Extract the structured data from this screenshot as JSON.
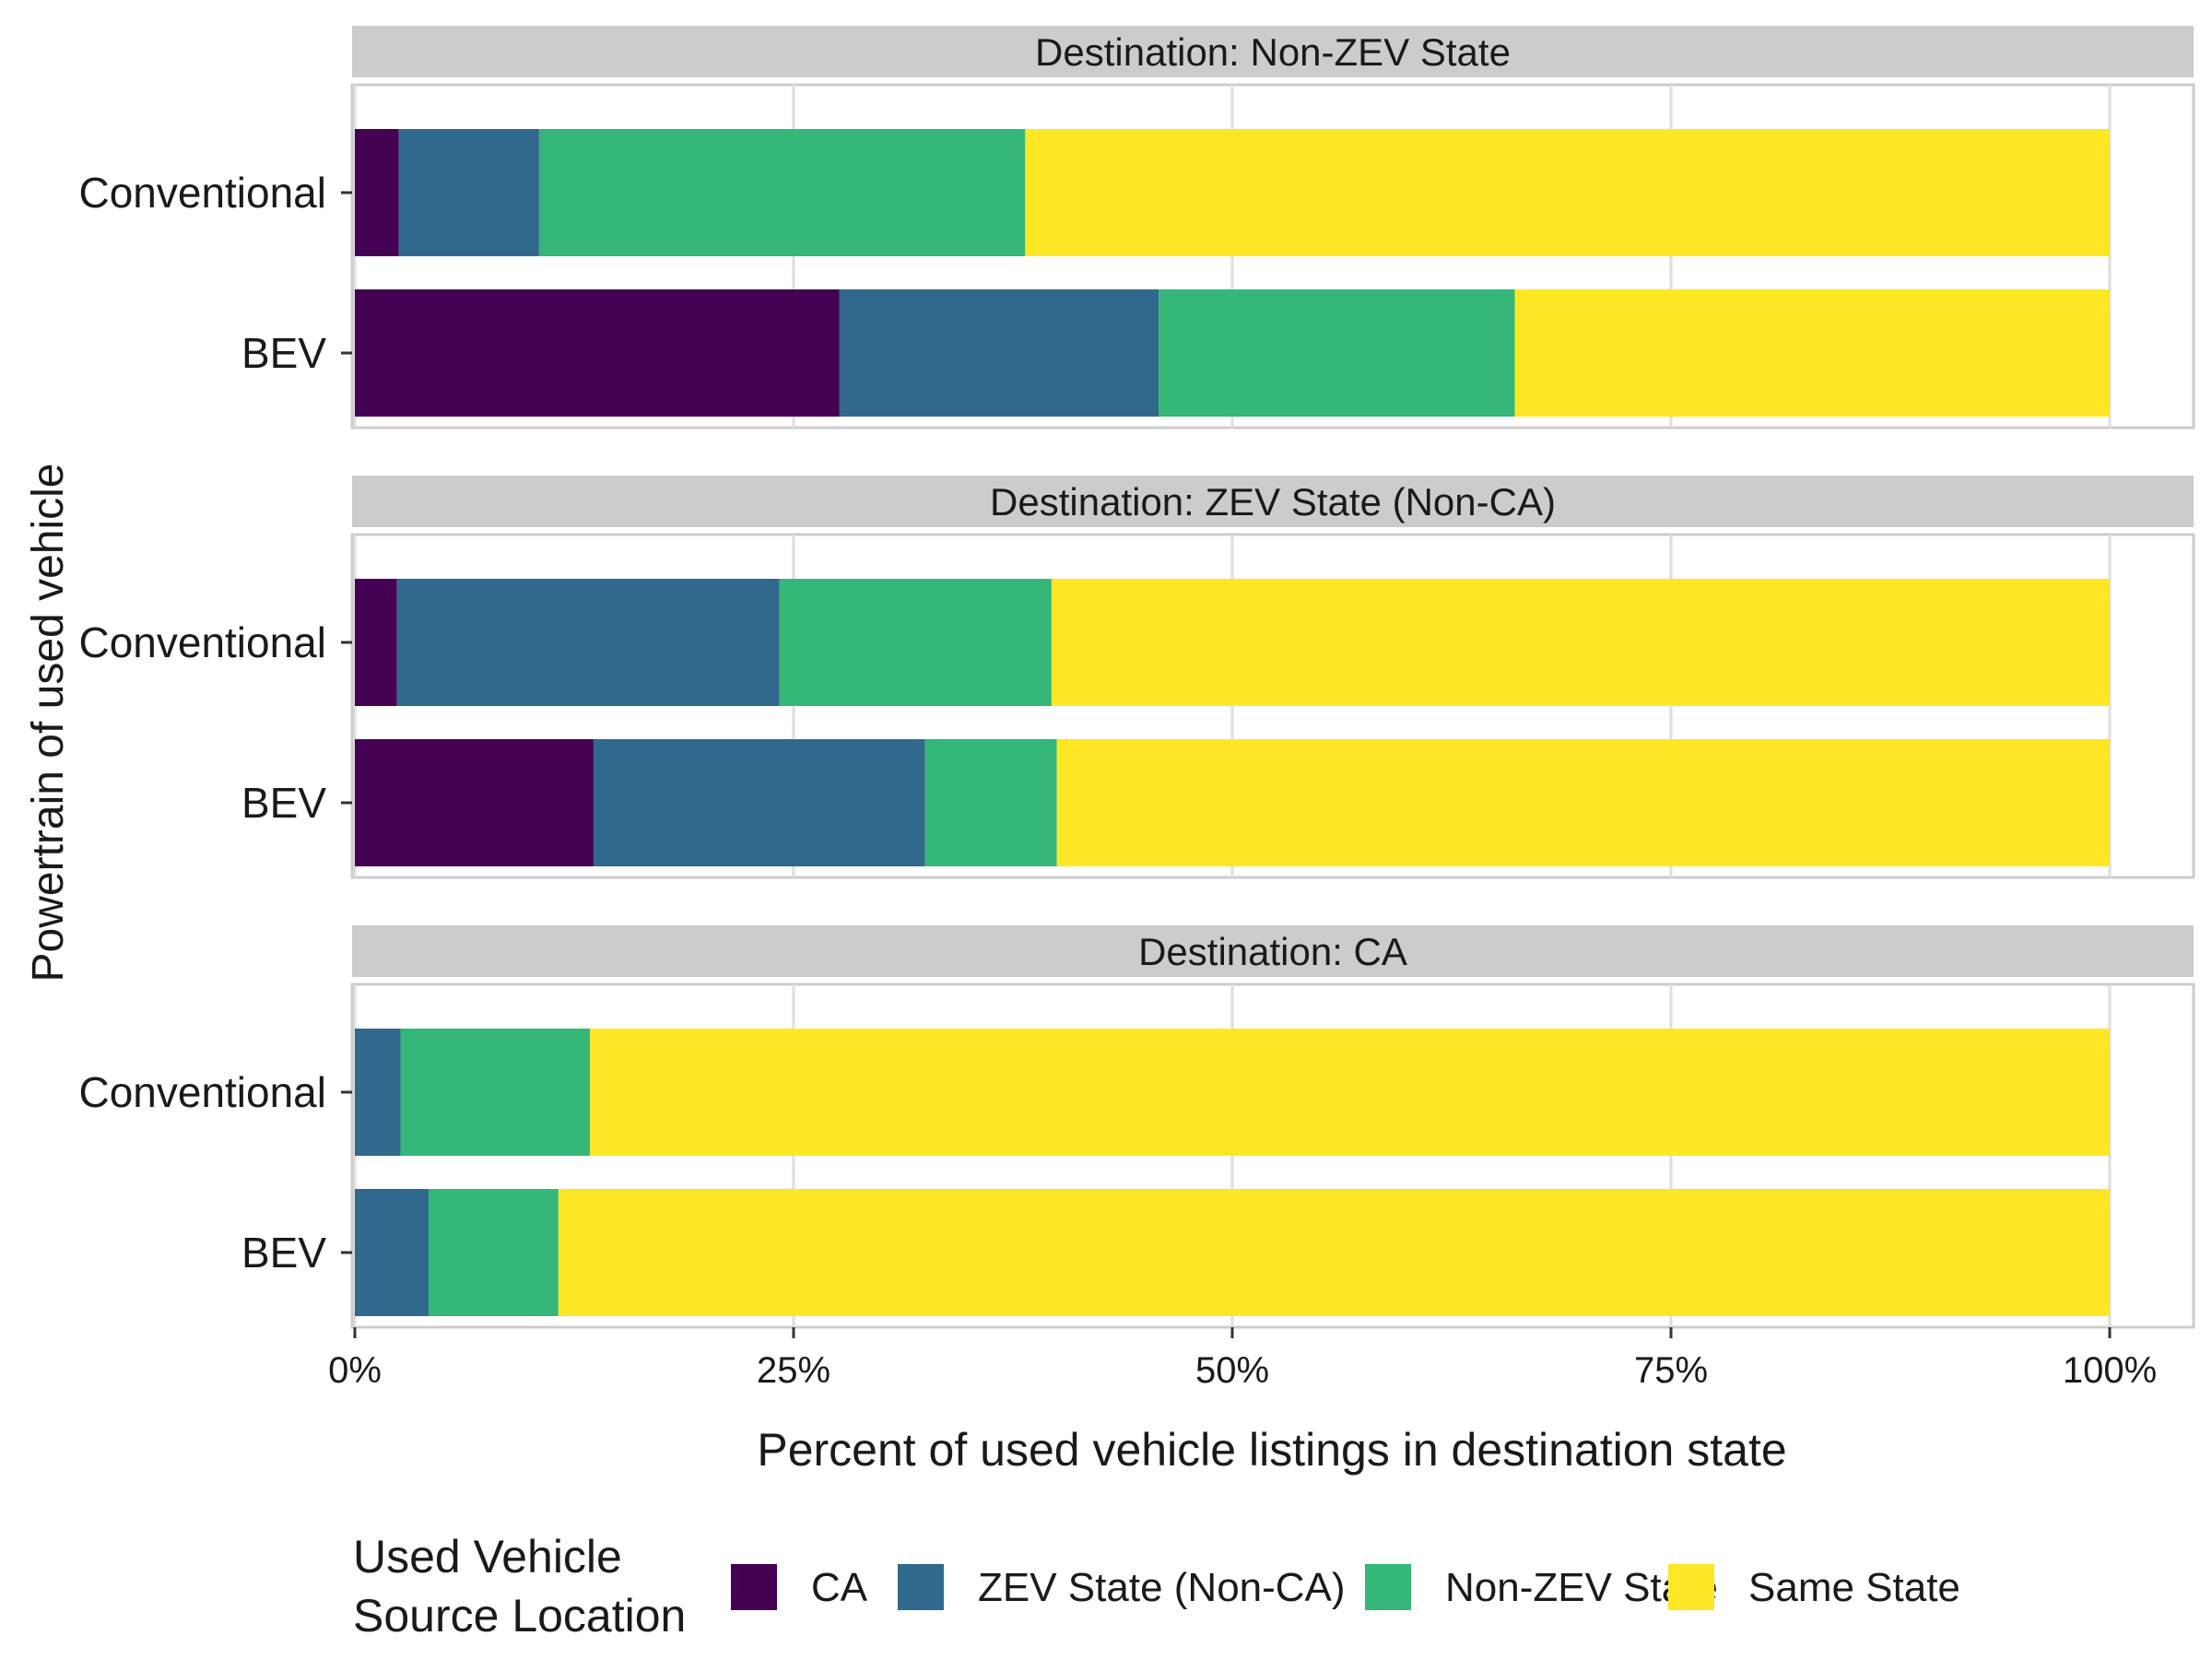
{
  "chart_data": {
    "type": "bar",
    "orientation": "horizontal",
    "stacked": true,
    "facets": [
      {
        "label": "Destination: Non-ZEV State",
        "categories": [
          "Conventional",
          "BEV"
        ],
        "series": [
          {
            "name": "CA",
            "values": [
              2.5,
              27.6
            ]
          },
          {
            "name": "ZEV State (Non-CA)",
            "values": [
              8.0,
              18.2
            ]
          },
          {
            "name": "Non-ZEV State",
            "values": [
              27.7,
              20.3
            ]
          },
          {
            "name": "Same State",
            "values": [
              61.8,
              33.9
            ]
          }
        ]
      },
      {
        "label": "Destination: ZEV State (Non-CA)",
        "categories": [
          "Conventional",
          "BEV"
        ],
        "series": [
          {
            "name": "CA",
            "values": [
              2.4,
              13.6
            ]
          },
          {
            "name": "ZEV State (Non-CA)",
            "values": [
              21.8,
              18.9
            ]
          },
          {
            "name": "Non-ZEV State",
            "values": [
              15.5,
              7.5
            ]
          },
          {
            "name": "Same State",
            "values": [
              60.3,
              60.0
            ]
          }
        ]
      },
      {
        "label": "Destination: CA",
        "categories": [
          "Conventional",
          "BEV"
        ],
        "series": [
          {
            "name": "CA",
            "values": [
              0,
              0
            ]
          },
          {
            "name": "ZEV State (Non-CA)",
            "values": [
              2.6,
              4.2
            ]
          },
          {
            "name": "Non-ZEV State",
            "values": [
              10.8,
              7.4
            ]
          },
          {
            "name": "Same State",
            "values": [
              86.6,
              88.4
            ]
          }
        ]
      }
    ],
    "xlabel": "Percent of used vehicle listings in destination state",
    "ylabel": "Powertrain of used vehicle",
    "xlim": [
      0,
      100
    ],
    "xticks": [
      0,
      25,
      50,
      75,
      100
    ],
    "xtick_labels": [
      "0%",
      "25%",
      "50%",
      "75%",
      "100%"
    ],
    "grid": true,
    "legend": {
      "title_lines": [
        "Used Vehicle",
        "Source Location"
      ],
      "placement": "bottom",
      "entries": [
        "CA",
        "ZEV State (Non-CA)",
        "Non-ZEV State",
        "Same State"
      ]
    },
    "colors": {
      "CA": "#440154",
      "ZEV State (Non-CA)": "#31688e",
      "Non-ZEV State": "#35b779",
      "Same State": "#fde725"
    }
  }
}
